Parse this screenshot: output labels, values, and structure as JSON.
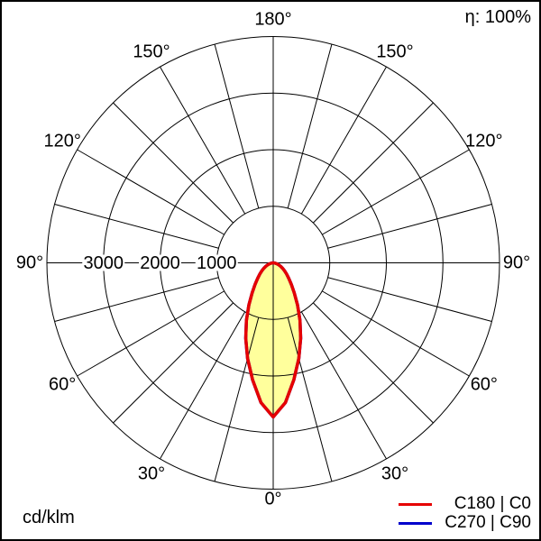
{
  "eta_label": "η: 100%",
  "unit_label": "cd/klm",
  "legend": {
    "items": [
      {
        "label": "C180 | C0",
        "color": "#e60000"
      },
      {
        "label": "C270 | C90",
        "color": "#0000cc"
      }
    ]
  },
  "chart_data": {
    "type": "polar",
    "subtype": "luminous-intensity-distribution",
    "title": "",
    "unit": "cd/klm",
    "efficiency_percent": 100,
    "radial_axis": {
      "rings": [
        1000,
        2000,
        3000,
        4000
      ],
      "labeled_rings": [
        3000,
        2000,
        1000
      ],
      "ring_label_texts": [
        "3000",
        "2000",
        "1000"
      ],
      "max": 4000
    },
    "angular_axis": {
      "spoke_step_deg": 15,
      "label_step_deg": 30,
      "labels": [
        {
          "text": "180°",
          "gamma": 180,
          "side": "C"
        },
        {
          "text": "150°",
          "gamma": 150,
          "side": "L"
        },
        {
          "text": "150°",
          "gamma": 150,
          "side": "R"
        },
        {
          "text": "120°",
          "gamma": 120,
          "side": "L"
        },
        {
          "text": "120°",
          "gamma": 120,
          "side": "R"
        },
        {
          "text": "90°",
          "gamma": 90,
          "side": "L"
        },
        {
          "text": "90°",
          "gamma": 90,
          "side": "R"
        },
        {
          "text": "60°",
          "gamma": 60,
          "side": "L"
        },
        {
          "text": "60°",
          "gamma": 60,
          "side": "R"
        },
        {
          "text": "30°",
          "gamma": 30,
          "side": "L"
        },
        {
          "text": "30°",
          "gamma": 30,
          "side": "R"
        },
        {
          "text": "0°",
          "gamma": 0,
          "side": "C"
        }
      ]
    },
    "series": [
      {
        "name": "C180 | C0",
        "color": "#e60000",
        "fill": "#ffff9c",
        "symmetric": true,
        "gamma_deg": [
          0,
          5,
          10,
          15,
          20,
          25,
          30,
          35,
          40,
          45,
          50,
          55,
          60,
          65,
          70,
          75,
          80,
          85,
          90
        ],
        "values_cd_per_klm": [
          2725,
          2480,
          2100,
          1750,
          1420,
          1120,
          860,
          650,
          500,
          390,
          310,
          245,
          190,
          145,
          105,
          70,
          40,
          15,
          0
        ]
      },
      {
        "name": "C270 | C90",
        "color": "#0000cc",
        "fill": null,
        "symmetric": true,
        "gamma_deg": [
          0,
          5,
          10,
          15,
          20,
          25,
          30,
          35,
          40,
          45,
          50,
          55,
          60,
          65,
          70,
          75,
          80,
          85,
          90
        ],
        "values_cd_per_klm": [
          2725,
          2480,
          2100,
          1750,
          1420,
          1120,
          860,
          650,
          500,
          390,
          310,
          245,
          190,
          145,
          105,
          70,
          40,
          15,
          0
        ]
      }
    ]
  }
}
